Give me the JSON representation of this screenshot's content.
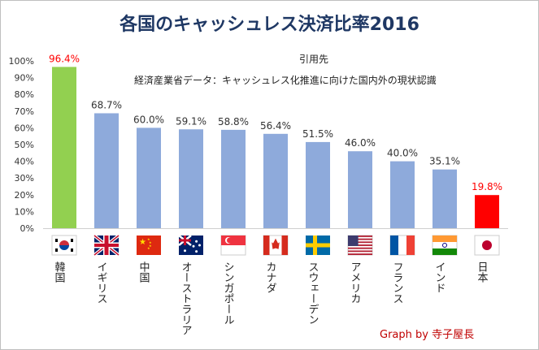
{
  "chart_data": {
    "type": "bar",
    "title": "各国のキャッシュレス決済比率2016",
    "categories": [
      "韓国",
      "イギリス",
      "中国",
      "オーストラリア",
      "シンガポール",
      "カナダ",
      "スウェーデン",
      "アメリカ",
      "フランス",
      "インド",
      "日本"
    ],
    "values": [
      96.4,
      68.7,
      60.0,
      59.1,
      58.8,
      56.4,
      51.5,
      46.0,
      40.0,
      35.1,
      19.8
    ],
    "value_labels": [
      "96.4%",
      "68.7%",
      "60.0%",
      "59.1%",
      "58.8%",
      "56.4%",
      "51.5%",
      "46.0%",
      "40.0%",
      "35.1%",
      "19.8%"
    ],
    "bar_colors": [
      "#92d050",
      "#8eaadb",
      "#8eaadb",
      "#8eaadb",
      "#8eaadb",
      "#8eaadb",
      "#8eaadb",
      "#8eaadb",
      "#8eaadb",
      "#8eaadb",
      "#ff0000"
    ],
    "label_colors": [
      "#ff0000",
      "#333333",
      "#333333",
      "#333333",
      "#333333",
      "#333333",
      "#333333",
      "#333333",
      "#333333",
      "#333333",
      "#ff0000"
    ],
    "flags": [
      "kr-flag",
      "gb-flag",
      "cn-flag",
      "au-flag",
      "sg-flag",
      "ca-flag",
      "se-flag",
      "us-flag",
      "fr-flag",
      "in-flag",
      "jp-flag"
    ],
    "yticks": [
      "0%",
      "10%",
      "20%",
      "30%",
      "40%",
      "50%",
      "60%",
      "70%",
      "80%",
      "90%",
      "100%"
    ],
    "ylim": [
      0,
      100
    ],
    "xlabel": "",
    "ylabel": "",
    "grid": false,
    "legend": "none"
  },
  "source": {
    "heading": "引用先",
    "text": "経済産業省データ：キャッシュレス化推進に向けた国内外の現状認識"
  },
  "credit": "Graph by 寺子屋長"
}
